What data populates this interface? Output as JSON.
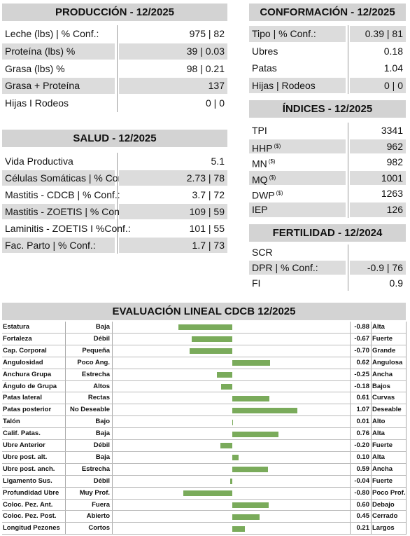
{
  "produccion": {
    "title": "PRODUCCIÓN - 12/2025",
    "rows": [
      {
        "label": "Leche (lbs) | % Conf.:",
        "value": "975 | 82"
      },
      {
        "label": "Proteína (lbs) %",
        "value": "39 | 0.03"
      },
      {
        "label": "Grasa (lbs) %",
        "value": "98 | 0.21"
      },
      {
        "label": "Grasa + Proteína",
        "value": "137"
      },
      {
        "label": "Hijas I Rodeos",
        "value": "0 | 0"
      }
    ]
  },
  "salud": {
    "title": "SALUD - 12/2025",
    "rows": [
      {
        "label": "Vida Productiva",
        "value": "5.1"
      },
      {
        "label": "Células Somáticas | % Conf.:",
        "value": "2.73 | 78"
      },
      {
        "label": "Mastitis - CDCB | % Conf.:",
        "value": "3.7 | 72"
      },
      {
        "label": "Mastitis - ZOETIS | % Conf.:",
        "value": "109 | 59"
      },
      {
        "label": "Laminitis - ZOETIS I %Conf.:",
        "value": "101 | 55"
      },
      {
        "label": "Fac. Parto | % Conf.:",
        "value": "1.7 | 73"
      }
    ]
  },
  "conformacion": {
    "title": "CONFORMACIÓN - 12/2025",
    "rows": [
      {
        "label": "Tipo | % Conf.:",
        "value": "0.39 | 81"
      },
      {
        "label": "Ubres",
        "value": "0.18"
      },
      {
        "label": "Patas",
        "value": "1.04"
      },
      {
        "label": "Hijas | Rodeos",
        "value": "0 | 0"
      }
    ]
  },
  "indices": {
    "title": "ÍNDICES - 12/2025",
    "rows": [
      {
        "label": "TPI",
        "value": "3341"
      },
      {
        "label": "HHP",
        "sup": "($)",
        "value": "962"
      },
      {
        "label": "MN",
        "sup": "($)",
        "value": "982"
      },
      {
        "label": "MQ",
        "sup": "($)",
        "value": "1001"
      },
      {
        "label": "DWP",
        "sup": "($)",
        "value": "1263"
      },
      {
        "label": "IEP",
        "value": "126"
      }
    ]
  },
  "fertilidad": {
    "title": "FERTILIDAD - 12/2024",
    "rows": [
      {
        "label": "SCR",
        "value": ""
      },
      {
        "label": "DPR | % Conf.:",
        "value": "-0.9 | 76"
      },
      {
        "label": "FI",
        "value": "0.9"
      }
    ]
  },
  "evaluacion": {
    "title": "EVALUACIÓN LINEAL CDCB 12/2025",
    "traits": [
      {
        "name": "Estatura",
        "low": "Baja",
        "value": -0.88,
        "value_label": "-0.88",
        "high": "Alta"
      },
      {
        "name": "Fortaleza",
        "low": "Débil",
        "value": -0.67,
        "value_label": "-0.67",
        "high": "Fuerte"
      },
      {
        "name": "Cap. Corporal",
        "low": "Pequeña",
        "value": -0.7,
        "value_label": "-0.70",
        "high": "Grande"
      },
      {
        "name": "Angulosidad",
        "low": "Poco Ang.",
        "value": 0.62,
        "value_label": "0.62",
        "high": "Angulosa"
      },
      {
        "name": "Anchura Grupa",
        "low": "Estrecha",
        "value": -0.25,
        "value_label": "-0.25",
        "high": "Ancha"
      },
      {
        "name": "Ángulo de Grupa",
        "low": "Altos",
        "value": -0.18,
        "value_label": "-0.18",
        "high": "Bajos"
      },
      {
        "name": "Patas lateral",
        "low": "Rectas",
        "value": 0.61,
        "value_label": "0.61",
        "high": "Curvas"
      },
      {
        "name": "Patas posterior",
        "low": "No Deseable",
        "value": 1.07,
        "value_label": "1.07",
        "high": "Deseable"
      },
      {
        "name": "Talón",
        "low": "Bajo",
        "value": 0.01,
        "value_label": "0.01",
        "high": "Alto"
      },
      {
        "name": "Calif. Patas.",
        "low": "Baja",
        "value": 0.76,
        "value_label": "0.76",
        "high": "Alta"
      },
      {
        "name": "Ubre Anterior",
        "low": "Débil",
        "value": -0.2,
        "value_label": "-0.20",
        "high": "Fuerte"
      },
      {
        "name": "Ubre post. alt.",
        "low": "Baja",
        "value": 0.1,
        "value_label": "0.10",
        "high": "Alta"
      },
      {
        "name": "Ubre post. anch.",
        "low": "Estrecha",
        "value": 0.59,
        "value_label": "0.59",
        "high": "Ancha"
      },
      {
        "name": "Ligamento Sus.",
        "low": "Débil",
        "value": -0.04,
        "value_label": "-0.04",
        "high": "Fuerte"
      },
      {
        "name": "Profundidad Ubre",
        "low": "Muy Prof.",
        "value": -0.8,
        "value_label": "-0.80",
        "high": "Poco Prof."
      },
      {
        "name": "Coloc. Pez. Ant.",
        "low": "Fuera",
        "value": 0.6,
        "value_label": "0.60",
        "high": "Debajo"
      },
      {
        "name": "Coloc. Pez. Post.",
        "low": "Abierto",
        "value": 0.45,
        "value_label": "0.45",
        "high": "Cerrado"
      },
      {
        "name": "Longitud Pezones",
        "low": "Cortos",
        "value": 0.21,
        "value_label": "0.21",
        "high": "Largos"
      }
    ]
  }
}
